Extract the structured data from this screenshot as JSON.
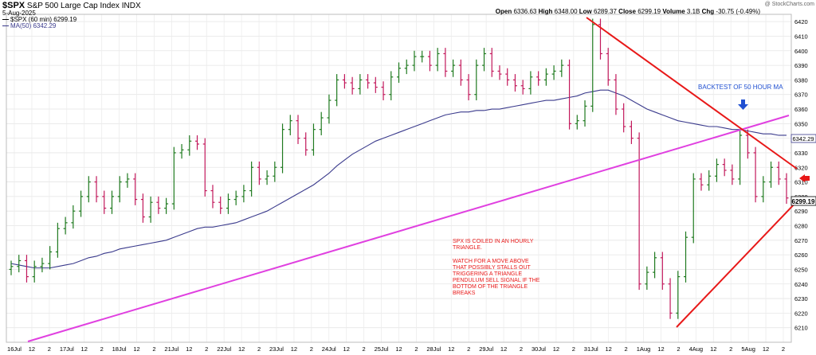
{
  "header": {
    "symbol": "$SPX",
    "name": "S&P 500 Large Cap Index",
    "exchange": "INDX",
    "date": "5-Aug-2025",
    "watermark": "@ StockCharts.com",
    "legend_price": "$SPX (60 min) 6299.19",
    "legend_ma": "MA(50) 6342.29",
    "open_label": "Open",
    "open": "6336.63",
    "high_label": "High",
    "high": "6348.00",
    "low_label": "Low",
    "low": "6289.37",
    "close_label": "Close",
    "close": "6299.19",
    "volume_label": "Volume",
    "volume": "3.1B",
    "chg_label": "Chg",
    "chg": "-30.75 (-0.49%)"
  },
  "annotations": {
    "backtest": "BACKTEST OF 50 HOUR MA",
    "coiled_lines": [
      "SPX IS COILED IN AN HOURLY",
      "TRIANGLE."
    ],
    "watch_lines": [
      "WATCH FOR A MOVE ABOVE",
      "THAT POSSIBLY STALLS OUT",
      "TRIGGERING A TRIANGLE",
      "PENDULUM SELL SIGNAL IF THE",
      "BOTTOM OF THE TRIANGLE",
      "BREAKS"
    ]
  },
  "colors": {
    "bar_up": "#1f7a1f",
    "bar_down": "#c2185b",
    "ma": "#3a3a8c",
    "trend_magenta": "#e040e0",
    "triangle_red": "#e81818",
    "arrow_blue": "#1f4fd1",
    "arrow_red": "#e81818",
    "grid": "#e5e5e5"
  },
  "chart_data": {
    "type": "ohlc",
    "interval": "60 min",
    "ylim": [
      6200,
      6425
    ],
    "yticks": [
      6210,
      6220,
      6230,
      6240,
      6250,
      6260,
      6270,
      6280,
      6290,
      6300,
      6310,
      6320,
      6330,
      6340,
      6350,
      6360,
      6370,
      6380,
      6390,
      6400,
      6410,
      6420
    ],
    "price_labels": {
      "ma": "6342.29",
      "last": "6299.19"
    },
    "x_labels": [
      "16Jul",
      "12",
      "2",
      "17Jul",
      "12",
      "2",
      "18Jul",
      "12",
      "2",
      "21Jul",
      "12",
      "2",
      "22Jul",
      "12",
      "2",
      "23Jul",
      "12",
      "2",
      "24Jul",
      "12",
      "2",
      "25Jul",
      "12",
      "2",
      "28Jul",
      "12",
      "2",
      "29Jul",
      "12",
      "2",
      "30Jul",
      "12",
      "2",
      "31Jul",
      "12",
      "2",
      "1Aug",
      "12",
      "2",
      "4Aug",
      "12",
      "2",
      "5Aug",
      "12",
      "2"
    ],
    "closes": [
      6252,
      6256,
      6245,
      6252,
      6254,
      6262,
      6278,
      6282,
      6290,
      6300,
      6310,
      6300,
      6292,
      6300,
      6310,
      6312,
      6298,
      6286,
      6296,
      6292,
      6295,
      6330,
      6332,
      6338,
      6336,
      6304,
      6296,
      6292,
      6298,
      6300,
      6304,
      6320,
      6312,
      6314,
      6320,
      6346,
      6352,
      6340,
      6332,
      6346,
      6354,
      6366,
      6380,
      6378,
      6374,
      6380,
      6378,
      6375,
      6370,
      6382,
      6388,
      6390,
      6396,
      6396,
      6390,
      6398,
      6386,
      6390,
      6380,
      6370,
      6390,
      6398,
      6386,
      6384,
      6380,
      6376,
      6374,
      6382,
      6380,
      6384,
      6386,
      6390,
      6350,
      6352,
      6362,
      6418,
      6398,
      6380,
      6360,
      6348,
      6340,
      6240,
      6248,
      6258,
      6240,
      6220,
      6245,
      6272,
      6312,
      6308,
      6314,
      6322,
      6318,
      6312,
      6342,
      6330,
      6300,
      6310,
      6320,
      6312,
      6299
    ],
    "ma50": [
      6254,
      6253,
      6252,
      6251,
      6251,
      6251,
      6252,
      6253,
      6254,
      6256,
      6258,
      6259,
      6261,
      6262,
      6264,
      6265,
      6266,
      6267,
      6268,
      6269,
      6270,
      6272,
      6274,
      6276,
      6278,
      6279,
      6279,
      6280,
      6281,
      6282,
      6284,
      6286,
      6288,
      6290,
      6293,
      6296,
      6299,
      6302,
      6305,
      6308,
      6312,
      6316,
      6321,
      6325,
      6329,
      6332,
      6335,
      6338,
      6340,
      6342,
      6344,
      6346,
      6348,
      6350,
      6352,
      6354,
      6356,
      6357,
      6358,
      6358,
      6359,
      6359,
      6360,
      6360,
      6361,
      6362,
      6363,
      6364,
      6365,
      6366,
      6366,
      6367,
      6368,
      6369,
      6371,
      6372,
      6373,
      6373,
      6371,
      6369,
      6366,
      6363,
      6360,
      6358,
      6356,
      6354,
      6352,
      6351,
      6350,
      6349,
      6348,
      6348,
      6347,
      6346,
      6346,
      6345,
      6344,
      6343,
      6343,
      6342,
      6342
    ]
  }
}
